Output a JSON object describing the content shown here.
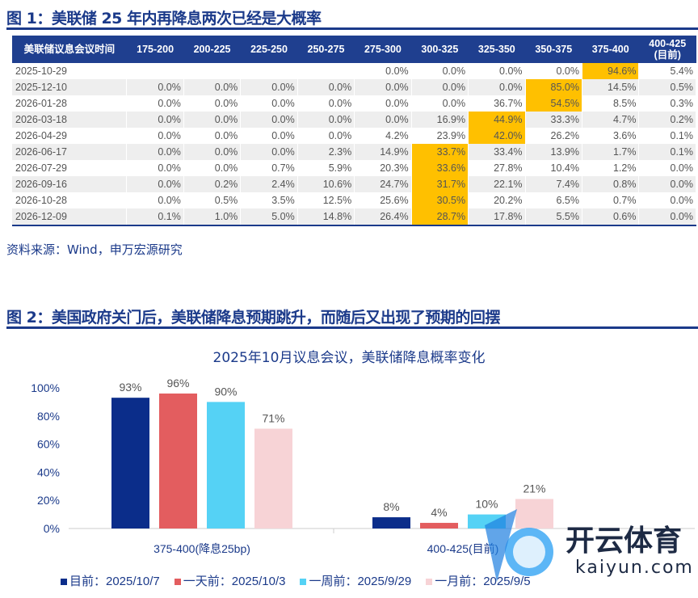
{
  "figure1": {
    "title": "图 1：美联储 25 年内再降息两次已经是大概率",
    "headers": [
      "美联储议息会议时间",
      "175-200",
      "200-225",
      "225-250",
      "250-275",
      "275-300",
      "300-325",
      "325-350",
      "350-375",
      "375-400",
      "400-425\n(目前)"
    ],
    "rows": [
      {
        "date": "2025-10-29",
        "values": [
          "",
          "",
          "",
          "",
          "0.0%",
          "0.0%",
          "0.0%",
          "0.0%",
          "94.6%",
          "5.4%"
        ],
        "highlight": 8
      },
      {
        "date": "2025-12-10",
        "values": [
          "0.0%",
          "0.0%",
          "0.0%",
          "0.0%",
          "0.0%",
          "0.0%",
          "0.0%",
          "85.0%",
          "14.5%",
          "0.5%"
        ],
        "highlight": 7
      },
      {
        "date": "2026-01-28",
        "values": [
          "0.0%",
          "0.0%",
          "0.0%",
          "0.0%",
          "0.0%",
          "0.0%",
          "36.7%",
          "54.5%",
          "8.5%",
          "0.3%"
        ],
        "highlight": 7
      },
      {
        "date": "2026-03-18",
        "values": [
          "0.0%",
          "0.0%",
          "0.0%",
          "0.0%",
          "0.0%",
          "16.9%",
          "44.9%",
          "33.3%",
          "4.7%",
          "0.2%"
        ],
        "highlight": 6
      },
      {
        "date": "2026-04-29",
        "values": [
          "0.0%",
          "0.0%",
          "0.0%",
          "0.0%",
          "4.2%",
          "23.9%",
          "42.0%",
          "26.2%",
          "3.6%",
          "0.1%"
        ],
        "highlight": 6
      },
      {
        "date": "2026-06-17",
        "values": [
          "0.0%",
          "0.0%",
          "0.0%",
          "2.3%",
          "14.9%",
          "33.7%",
          "33.4%",
          "13.9%",
          "1.7%",
          "0.1%"
        ],
        "highlight": 5
      },
      {
        "date": "2026-07-29",
        "values": [
          "0.0%",
          "0.0%",
          "0.7%",
          "5.9%",
          "20.3%",
          "33.6%",
          "27.8%",
          "10.4%",
          "1.2%",
          "0.0%"
        ],
        "highlight": 5
      },
      {
        "date": "2026-09-16",
        "values": [
          "0.0%",
          "0.2%",
          "2.4%",
          "10.6%",
          "24.7%",
          "31.7%",
          "22.1%",
          "7.4%",
          "0.8%",
          "0.0%"
        ],
        "highlight": 5
      },
      {
        "date": "2026-10-28",
        "values": [
          "0.0%",
          "0.5%",
          "3.5%",
          "12.5%",
          "25.6%",
          "30.5%",
          "20.2%",
          "6.5%",
          "0.7%",
          "0.0%"
        ],
        "highlight": 5
      },
      {
        "date": "2026-12-09",
        "values": [
          "0.1%",
          "1.0%",
          "5.0%",
          "14.8%",
          "26.4%",
          "28.7%",
          "17.8%",
          "5.5%",
          "0.6%",
          "0.0%"
        ],
        "highlight": 5
      }
    ],
    "source": "资料来源：Wind，申万宏源研究",
    "colors": {
      "header": "#1f3f8f",
      "highlight": "#ffc000"
    }
  },
  "figure2": {
    "title": "图 2：美国政府关门后，美联储降息预期跳升，而随后又出现了预期的回摆"
  },
  "chart_data": {
    "type": "bar",
    "title": "2025年10月议息会议，美联储降息概率变化",
    "categories": [
      "375-400(降息25bp)",
      "400-425(目前)"
    ],
    "series": [
      {
        "name": "目前：2025/10/7",
        "values": [
          93,
          8
        ],
        "color": "#0b2d8a"
      },
      {
        "name": "一天前：2025/10/3",
        "values": [
          96,
          4
        ],
        "color": "#e35d5f"
      },
      {
        "name": "一周前：2025/9/29",
        "values": [
          90,
          10
        ],
        "color": "#55d2f5"
      },
      {
        "name": "一月前：2025/9/5",
        "values": [
          71,
          21
        ],
        "color": "#f7d3d6"
      }
    ],
    "ylim": [
      0,
      100
    ],
    "yticks": [
      "0%",
      "20%",
      "40%",
      "60%",
      "80%",
      "100%"
    ],
    "legend": "bottom",
    "grid": false
  },
  "watermark": {
    "cn": "开云体育",
    "en": "kaiyun.com"
  }
}
